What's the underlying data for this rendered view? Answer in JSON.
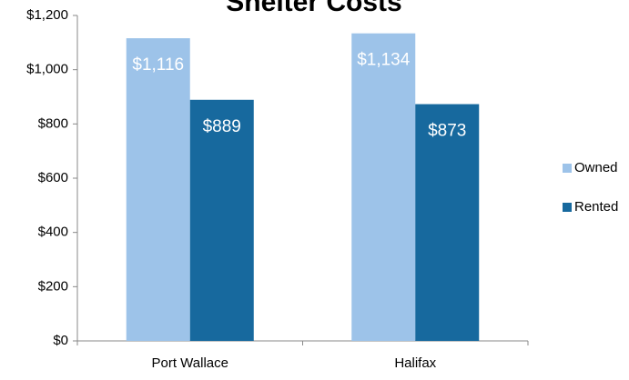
{
  "chart_data": {
    "type": "bar",
    "title": "Shelter Costs",
    "categories": [
      "Port Wallace",
      "Halifax"
    ],
    "series": [
      {
        "name": "Owned",
        "color": "#9dc3e9",
        "values": [
          1116,
          1134
        ],
        "value_labels": [
          "$1,116",
          "$1,134"
        ]
      },
      {
        "name": "Rented",
        "color": "#17699e",
        "values": [
          889,
          873
        ],
        "value_labels": [
          "$889",
          "$873"
        ]
      }
    ],
    "ylim": [
      0,
      1200
    ],
    "yticks": [
      {
        "value": 0,
        "label": "$0"
      },
      {
        "value": 200,
        "label": "$200"
      },
      {
        "value": 400,
        "label": "$400"
      },
      {
        "value": 600,
        "label": "$600"
      },
      {
        "value": 800,
        "label": "$800"
      },
      {
        "value": 1000,
        "label": "$1,000"
      },
      {
        "value": 1200,
        "label": "$1,200"
      }
    ],
    "grid": false,
    "legend": "right"
  }
}
